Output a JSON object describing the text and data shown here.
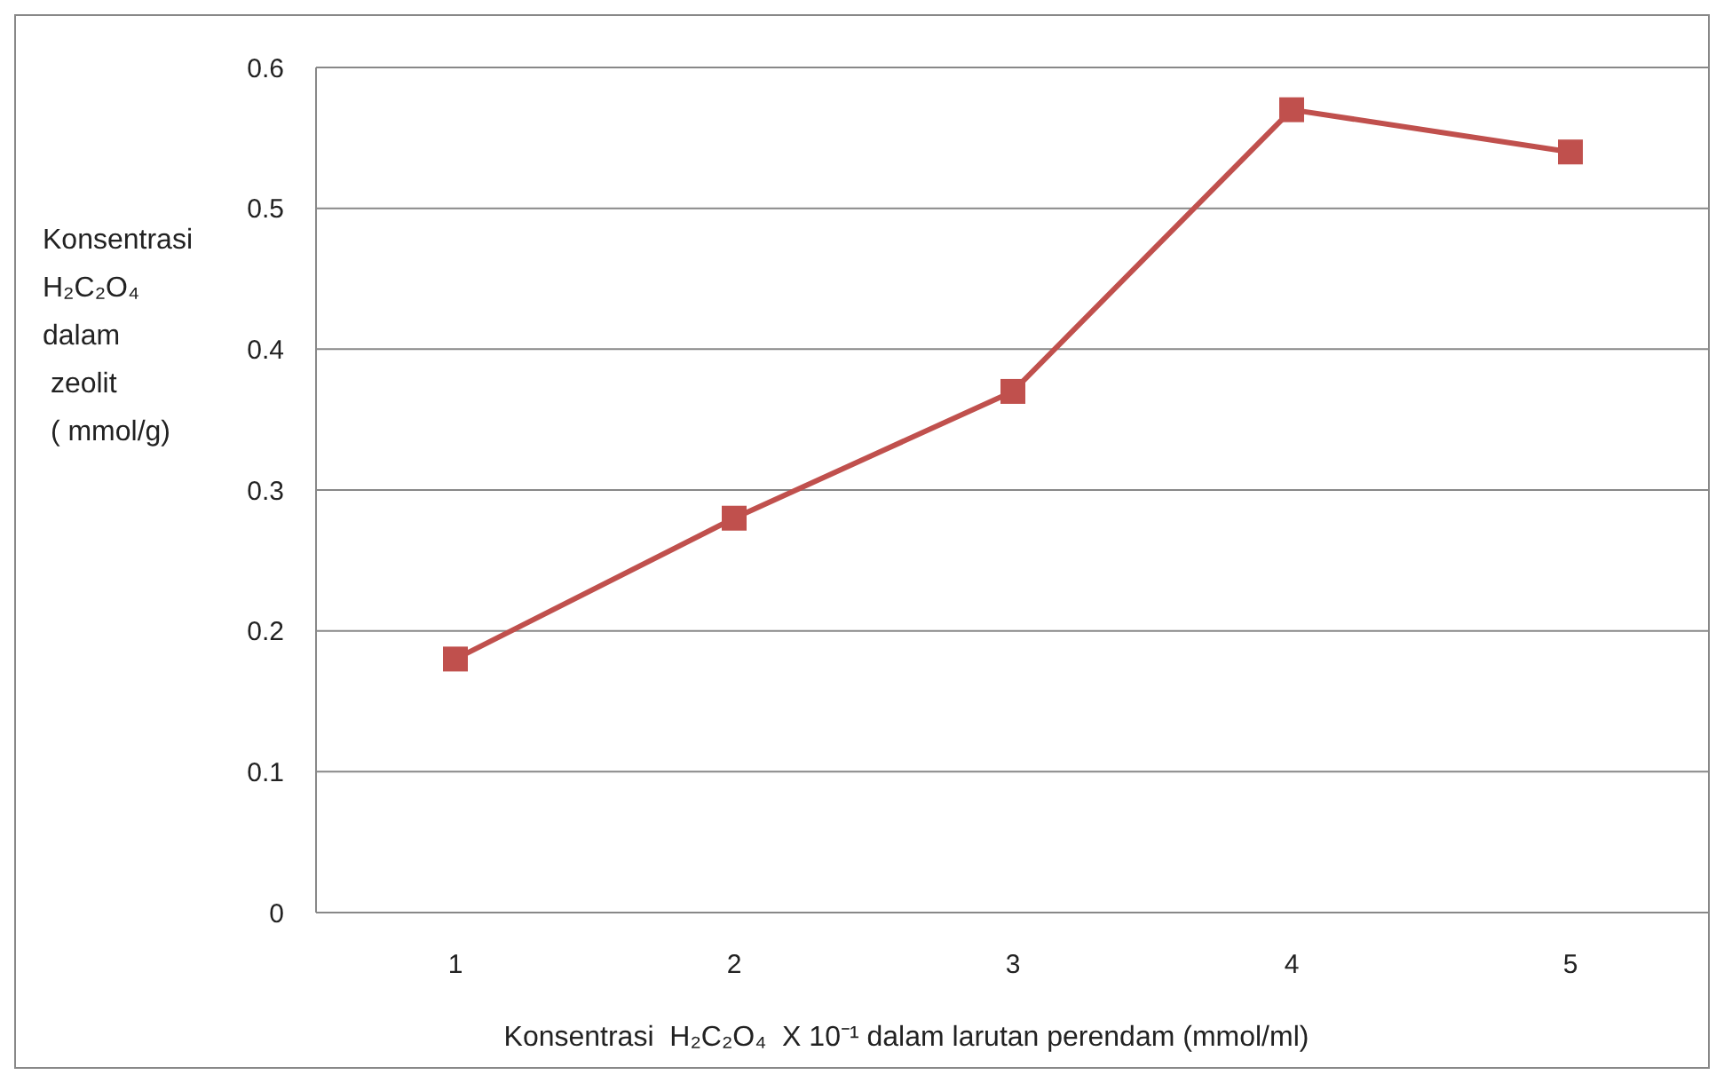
{
  "chart_data": {
    "type": "line",
    "xlabel": "Konsentrasi  H₂C₂O₄  X 10⁻¹ dalam larutan perendam (mmol/ml)",
    "ylabel": "Konsentrasi\nH₂C₂O₄\ndalam\n zeolit\n ( mmol/g)",
    "categories": [
      "1",
      "2",
      "3",
      "4",
      "5"
    ],
    "series": [
      {
        "color": "#c0504d",
        "values": [
          0.18,
          0.28,
          0.37,
          0.57,
          0.54
        ]
      }
    ],
    "ylim": [
      0,
      0.6
    ],
    "yticks": [
      0,
      0.1,
      0.2,
      0.3,
      0.4,
      0.5,
      0.6
    ],
    "grid": "y",
    "marker": "square",
    "line_style": "solid"
  }
}
